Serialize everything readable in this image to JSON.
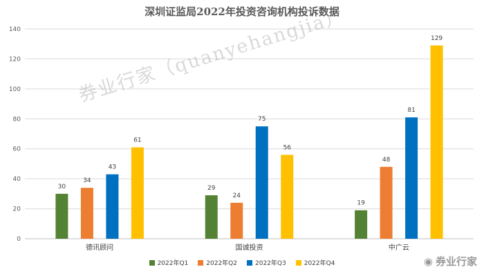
{
  "chart_data": {
    "type": "bar",
    "title": "深圳证监局2022年投资咨询机构投诉数据",
    "categories": [
      "德讯顾问",
      "国诚投资",
      "中广云"
    ],
    "series": [
      {
        "name": "2022年Q1",
        "color": "#548235",
        "values": [
          30,
          29,
          19
        ]
      },
      {
        "name": "2022年Q2",
        "color": "#ED7D31",
        "values": [
          34,
          24,
          48
        ]
      },
      {
        "name": "2022年Q3",
        "color": "#0070C0",
        "values": [
          43,
          75,
          81
        ]
      },
      {
        "name": "2022年Q4",
        "color": "#FFC000",
        "values": [
          61,
          56,
          129
        ]
      }
    ],
    "ylim": [
      0,
      140
    ],
    "yticks": [
      0,
      20,
      40,
      60,
      80,
      100,
      120,
      140
    ],
    "grid": true,
    "legend": "bottom"
  },
  "watermark": "券业行家（quanyehangjia）",
  "brand": "券业行家"
}
